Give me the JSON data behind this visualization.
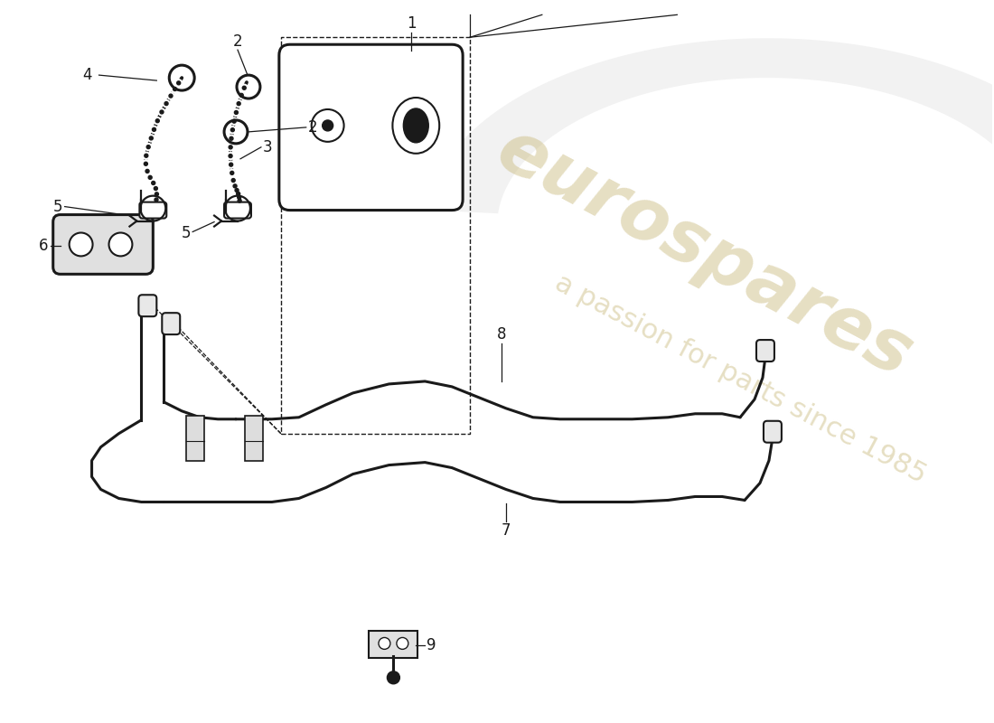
{
  "background_color": "#ffffff",
  "line_color": "#1a1a1a",
  "watermark_color1": "#c8b87a",
  "watermark_color2": "#b8a86a",
  "label_fontsize": 12,
  "fig_width": 11.0,
  "fig_height": 8.0,
  "dpi": 100
}
